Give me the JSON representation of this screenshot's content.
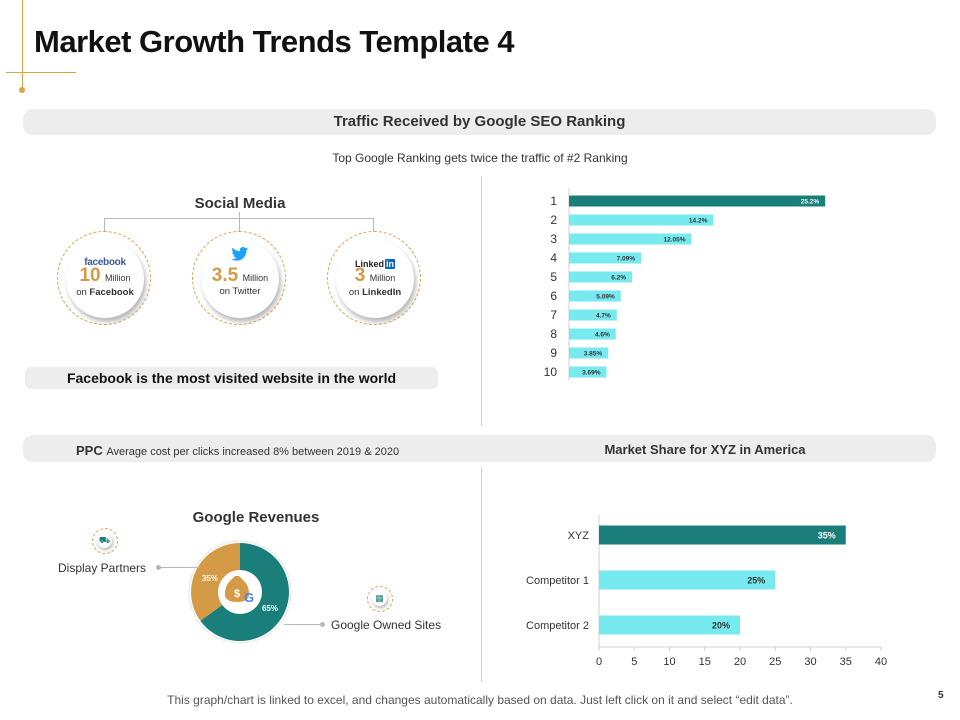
{
  "title": "Market Growth Trends Template 4",
  "seo_section": {
    "banner": "Traffic Received by Google SEO Ranking",
    "subtitle": "Top Google Ranking gets twice the traffic of #2 Ranking"
  },
  "social_media": {
    "title": "Social Media",
    "items": [
      {
        "logo": "facebook",
        "number": "10",
        "unit": "Million",
        "prefix": "on",
        "platform": "Facebook"
      },
      {
        "logo": "twitter-bird-icon",
        "number": "3.5",
        "unit": "Million",
        "prefix": "on",
        "platform": "Twitter"
      },
      {
        "logo": "Linked",
        "logo_badge": "in",
        "number": "3",
        "unit": "Million",
        "prefix": "on",
        "platform": "LinkedIn"
      }
    ],
    "fact_banner": "Facebook is the most visited website in the world"
  },
  "ppc": {
    "label": "PPC",
    "text": "Average cost per clicks increased 8% between 2019 & 2020"
  },
  "market_share_title": "Market Share for XYZ  in America",
  "google_revenues": {
    "title": "Google Revenues",
    "display_partners_label": "Display Partners",
    "owned_sites_label": "Google Owned Sites",
    "center_icons": [
      "money-bag-icon",
      "google-g-icon"
    ],
    "g_letter": "G"
  },
  "colors": {
    "teal": "#1a7f7a",
    "cyan": "#77eaf0",
    "gold": "#d59a45",
    "banner_bg": "#ededed"
  },
  "chart_data": [
    {
      "type": "bar",
      "orientation": "horizontal",
      "title": "Traffic Received by Google SEO Ranking",
      "categories": [
        "1",
        "2",
        "3",
        "4",
        "5",
        "6",
        "7",
        "8",
        "9",
        "10"
      ],
      "values": [
        25.2,
        14.2,
        12.05,
        7.09,
        6.2,
        5.09,
        4.7,
        4.6,
        3.85,
        3.69
      ],
      "labels": [
        "25.2%",
        "14.2%",
        "12.05%",
        "7.09%",
        "6.2%",
        "5.09%",
        "4.7%",
        "4.6%",
        "3.85%",
        "3.69%"
      ],
      "highlight_index": 0,
      "xlim": [
        0,
        30
      ]
    },
    {
      "type": "bar",
      "orientation": "horizontal",
      "title": "Market Share for XYZ  in America",
      "categories": [
        "XYZ",
        "Competitor 1",
        "Competitor 2"
      ],
      "values": [
        35,
        25,
        20
      ],
      "labels": [
        "35%",
        "25%",
        "20%"
      ],
      "highlight_index": 0,
      "xlim": [
        0,
        40
      ],
      "xticks": [
        "0",
        "5",
        "10",
        "15",
        "20",
        "25",
        "30",
        "35",
        "40"
      ]
    },
    {
      "type": "pie",
      "title": "Google Revenues",
      "categories": [
        "Google Owned Sites",
        "Display Partners"
      ],
      "values": [
        65,
        35
      ],
      "labels": [
        "65%",
        "35%"
      ]
    }
  ],
  "footer": "This graph/chart is linked to excel, and changes automatically based on data. Just left click on it and select “edit data”.",
  "page_number": "5"
}
